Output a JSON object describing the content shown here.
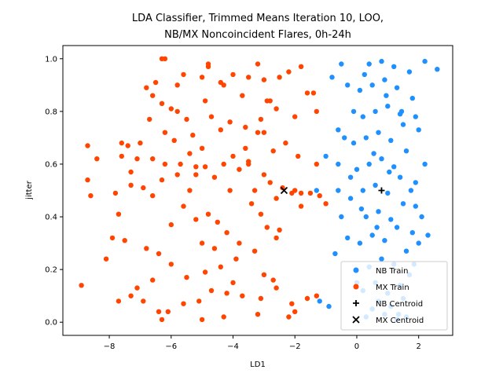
{
  "chart_data": {
    "type": "scatter",
    "title_lines": [
      "LDA Classifier, Trimmed Means Iteration 10, LOO,",
      "NB/MX Noncoincident Flares, 0h-24h"
    ],
    "xlabel": "LD1",
    "ylabel": "jitter",
    "xlim": [
      -9.5,
      3.1
    ],
    "ylim": [
      -0.05,
      1.05
    ],
    "xticks": [
      -8,
      -6,
      -4,
      -2,
      0,
      2
    ],
    "xtick_labels": [
      "−8",
      "−6",
      "−4",
      "−2",
      "0",
      "2"
    ],
    "yticks": [
      0.0,
      0.2,
      0.4,
      0.6,
      0.8,
      1.0
    ],
    "ytick_labels": [
      "0.0",
      "0.2",
      "0.4",
      "0.6",
      "0.8",
      "1.0"
    ],
    "grid": false,
    "legend_position": "bottom-right",
    "series": [
      {
        "name": "NB Train",
        "color": "#1e90ff",
        "marker": "circle",
        "points": [
          [
            0.3,
            0.02
          ],
          [
            0.5,
            0.05
          ],
          [
            0.7,
            0.08
          ],
          [
            0.9,
            0.03
          ],
          [
            1.1,
            0.06
          ],
          [
            1.3,
            0.01
          ],
          [
            1.5,
            0.09
          ],
          [
            0.2,
            0.12
          ],
          [
            0.6,
            0.15
          ],
          [
            1.0,
            0.11
          ],
          [
            1.4,
            0.14
          ],
          [
            1.7,
            0.18
          ],
          [
            0.4,
            0.21
          ],
          [
            0.8,
            0.24
          ],
          [
            1.2,
            0.22
          ],
          [
            1.6,
            0.27
          ],
          [
            0.1,
            0.3
          ],
          [
            0.5,
            0.33
          ],
          [
            0.9,
            0.31
          ],
          [
            1.3,
            0.36
          ],
          [
            1.8,
            0.34
          ],
          [
            0.3,
            0.4
          ],
          [
            0.7,
            0.42
          ],
          [
            1.1,
            0.39
          ],
          [
            1.5,
            0.45
          ],
          [
            -0.2,
            0.47
          ],
          [
            0.2,
            0.5
          ],
          [
            0.6,
            0.52
          ],
          [
            1.0,
            0.49
          ],
          [
            1.4,
            0.55
          ],
          [
            1.9,
            0.53
          ],
          [
            0.0,
            0.58
          ],
          [
            0.4,
            0.6
          ],
          [
            0.8,
            0.62
          ],
          [
            1.2,
            0.59
          ],
          [
            1.6,
            0.65
          ],
          [
            -0.1,
            0.68
          ],
          [
            0.3,
            0.7
          ],
          [
            0.7,
            0.72
          ],
          [
            1.1,
            0.69
          ],
          [
            1.5,
            0.75
          ],
          [
            2.0,
            0.73
          ],
          [
            0.2,
            0.78
          ],
          [
            0.6,
            0.8
          ],
          [
            1.0,
            0.82
          ],
          [
            1.4,
            0.79
          ],
          [
            1.8,
            0.85
          ],
          [
            0.1,
            0.88
          ],
          [
            0.5,
            0.9
          ],
          [
            0.9,
            0.92
          ],
          [
            1.3,
            0.89
          ],
          [
            1.7,
            0.95
          ],
          [
            0.4,
            0.98
          ],
          [
            0.8,
            0.99
          ],
          [
            1.2,
            0.97
          ],
          [
            2.2,
            0.99
          ],
          [
            2.6,
            0.96
          ],
          [
            -0.9,
            0.06
          ],
          [
            -1.2,
            0.08
          ],
          [
            -0.7,
            0.26
          ],
          [
            -0.5,
            0.4
          ],
          [
            -1.3,
            0.5
          ],
          [
            -0.6,
            0.6
          ],
          [
            -0.4,
            0.7
          ],
          [
            -0.8,
            0.93
          ],
          [
            -0.3,
            0.9
          ],
          [
            -0.5,
            0.98
          ],
          [
            -0.1,
            0.8
          ],
          [
            -0.2,
            0.55
          ],
          [
            1.9,
            0.44
          ],
          [
            2.0,
            0.3
          ],
          [
            2.3,
            0.33
          ],
          [
            2.2,
            0.6
          ],
          [
            1.9,
            0.78
          ],
          [
            2.1,
            0.4
          ],
          [
            1.6,
            0.02
          ],
          [
            0.0,
            0.15
          ],
          [
            -0.3,
            0.32
          ],
          [
            0.15,
            0.43
          ],
          [
            0.55,
            0.64
          ],
          [
            0.95,
            0.86
          ],
          [
            1.35,
            0.03
          ],
          [
            1.75,
            0.5
          ],
          [
            0.25,
            0.94
          ],
          [
            0.65,
            0.36
          ],
          [
            1.05,
            0.57
          ],
          [
            1.45,
            0.8
          ],
          [
            -0.6,
            0.73
          ],
          [
            -1.0,
            0.63
          ],
          [
            -0.6,
            0.5
          ],
          [
            1.85,
            0.22
          ]
        ]
      },
      {
        "name": "MX Train",
        "color": "#ff4500",
        "marker": "circle",
        "points": [
          [
            -6.2,
            1.0
          ],
          [
            -6.3,
            1.0
          ],
          [
            -4.8,
            0.98
          ],
          [
            -4.8,
            0.97
          ],
          [
            -3.2,
            0.98
          ],
          [
            -1.8,
            0.97
          ],
          [
            -1.3,
            0.8
          ],
          [
            -1.4,
            0.87
          ],
          [
            -1.6,
            0.87
          ],
          [
            -2.2,
            0.95
          ],
          [
            -2.5,
            0.93
          ],
          [
            -3.0,
            0.92
          ],
          [
            -3.5,
            0.93
          ],
          [
            -4.0,
            0.94
          ],
          [
            -4.4,
            0.91
          ],
          [
            -5.0,
            0.93
          ],
          [
            -5.6,
            0.94
          ],
          [
            -6.5,
            0.91
          ],
          [
            -6.8,
            0.89
          ],
          [
            -2.8,
            0.84
          ],
          [
            -3.7,
            0.86
          ],
          [
            -4.3,
            0.9
          ],
          [
            -5.8,
            0.8
          ],
          [
            -6.0,
            0.81
          ],
          [
            -6.3,
            0.83
          ],
          [
            -6.6,
            0.86
          ],
          [
            -2.6,
            0.81
          ],
          [
            -2.0,
            0.78
          ],
          [
            -3.1,
            0.77
          ],
          [
            -4.1,
            0.76
          ],
          [
            -5.5,
            0.77
          ],
          [
            -6.2,
            0.72
          ],
          [
            -6.7,
            0.77
          ],
          [
            -7.0,
            0.68
          ],
          [
            -7.6,
            0.68
          ],
          [
            -7.4,
            0.67
          ],
          [
            -7.6,
            0.63
          ],
          [
            -8.7,
            0.67
          ],
          [
            -8.4,
            0.62
          ],
          [
            -8.7,
            0.54
          ],
          [
            -8.6,
            0.48
          ],
          [
            -7.8,
            0.49
          ],
          [
            -7.3,
            0.52
          ],
          [
            -6.9,
            0.51
          ],
          [
            -7.1,
            0.62
          ],
          [
            -6.6,
            0.62
          ],
          [
            -6.2,
            0.6
          ],
          [
            -5.7,
            0.6
          ],
          [
            -5.2,
            0.59
          ],
          [
            -4.9,
            0.59
          ],
          [
            -4.3,
            0.6
          ],
          [
            -3.8,
            0.58
          ],
          [
            -3.0,
            0.56
          ],
          [
            -2.8,
            0.53
          ],
          [
            -2.4,
            0.51
          ],
          [
            -2.1,
            0.49
          ],
          [
            -1.8,
            0.49
          ],
          [
            -1.5,
            0.49
          ],
          [
            -1.2,
            0.48
          ],
          [
            -1.0,
            0.45
          ],
          [
            -1.3,
            0.6
          ],
          [
            -1.9,
            0.63
          ],
          [
            -2.7,
            0.65
          ],
          [
            -3.2,
            0.72
          ],
          [
            -3.6,
            0.74
          ],
          [
            -4.4,
            0.73
          ],
          [
            -5.0,
            0.66
          ],
          [
            -5.4,
            0.64
          ],
          [
            -5.8,
            0.56
          ],
          [
            -6.3,
            0.54
          ],
          [
            -6.6,
            0.48
          ],
          [
            -7.7,
            0.41
          ],
          [
            -7.9,
            0.32
          ],
          [
            -8.1,
            0.24
          ],
          [
            -7.5,
            0.31
          ],
          [
            -6.8,
            0.28
          ],
          [
            -6.4,
            0.26
          ],
          [
            -6.0,
            0.37
          ],
          [
            -5.6,
            0.44
          ],
          [
            -5.2,
            0.39
          ],
          [
            -4.8,
            0.41
          ],
          [
            -4.5,
            0.38
          ],
          [
            -4.2,
            0.34
          ],
          [
            -3.8,
            0.3
          ],
          [
            -3.4,
            0.45
          ],
          [
            -3.1,
            0.41
          ],
          [
            -2.9,
            0.36
          ],
          [
            -2.5,
            0.35
          ],
          [
            -2.6,
            0.32
          ],
          [
            -3.3,
            0.27
          ],
          [
            -3.9,
            0.24
          ],
          [
            -4.4,
            0.21
          ],
          [
            -4.9,
            0.19
          ],
          [
            -5.5,
            0.17
          ],
          [
            -6.0,
            0.22
          ],
          [
            -6.6,
            0.16
          ],
          [
            -7.1,
            0.13
          ],
          [
            -7.7,
            0.08
          ],
          [
            -8.9,
            0.14
          ],
          [
            -7.3,
            0.1
          ],
          [
            -6.9,
            0.08
          ],
          [
            -6.4,
            0.04
          ],
          [
            -6.1,
            0.04
          ],
          [
            -5.6,
            0.07
          ],
          [
            -5.1,
            0.08
          ],
          [
            -4.7,
            0.12
          ],
          [
            -4.2,
            0.11
          ],
          [
            -3.7,
            0.1
          ],
          [
            -3.1,
            0.09
          ],
          [
            -2.6,
            0.13
          ],
          [
            -2.1,
            0.07
          ],
          [
            -1.6,
            0.09
          ],
          [
            -1.3,
            0.1
          ],
          [
            -2.0,
            0.04
          ],
          [
            -2.2,
            0.02
          ],
          [
            -3.2,
            0.03
          ],
          [
            -4.3,
            0.02
          ],
          [
            -5.0,
            0.01
          ],
          [
            -6.3,
            0.01
          ],
          [
            -5.2,
            0.56
          ],
          [
            -4.6,
            0.55
          ],
          [
            -4.0,
            0.63
          ],
          [
            -3.5,
            0.61
          ],
          [
            -2.3,
            0.68
          ],
          [
            -3.6,
            0.66
          ],
          [
            -4.7,
            0.78
          ],
          [
            -5.3,
            0.71
          ],
          [
            -5.9,
            0.69
          ],
          [
            -7.3,
            0.57
          ],
          [
            -5.4,
            0.5
          ],
          [
            -4.1,
            0.5
          ],
          [
            -3.3,
            0.5
          ],
          [
            -2.6,
            0.47
          ],
          [
            -2.0,
            0.5
          ],
          [
            -1.8,
            0.44
          ],
          [
            -4.6,
            0.28
          ],
          [
            -5.0,
            0.3
          ],
          [
            -3.0,
            0.18
          ],
          [
            -2.7,
            0.16
          ],
          [
            -4.0,
            0.15
          ],
          [
            -3.5,
            0.6
          ],
          [
            -3.0,
            0.72
          ],
          [
            -2.9,
            0.84
          ],
          [
            -4.9,
            0.84
          ],
          [
            -5.8,
            0.9
          ]
        ]
      },
      {
        "name": "NB Centroid",
        "color": "#000000",
        "marker": "plus",
        "points": [
          [
            0.8,
            0.5
          ]
        ]
      },
      {
        "name": "MX Centroid",
        "color": "#000000",
        "marker": "x",
        "points": [
          [
            -2.35,
            0.5
          ]
        ]
      }
    ]
  }
}
